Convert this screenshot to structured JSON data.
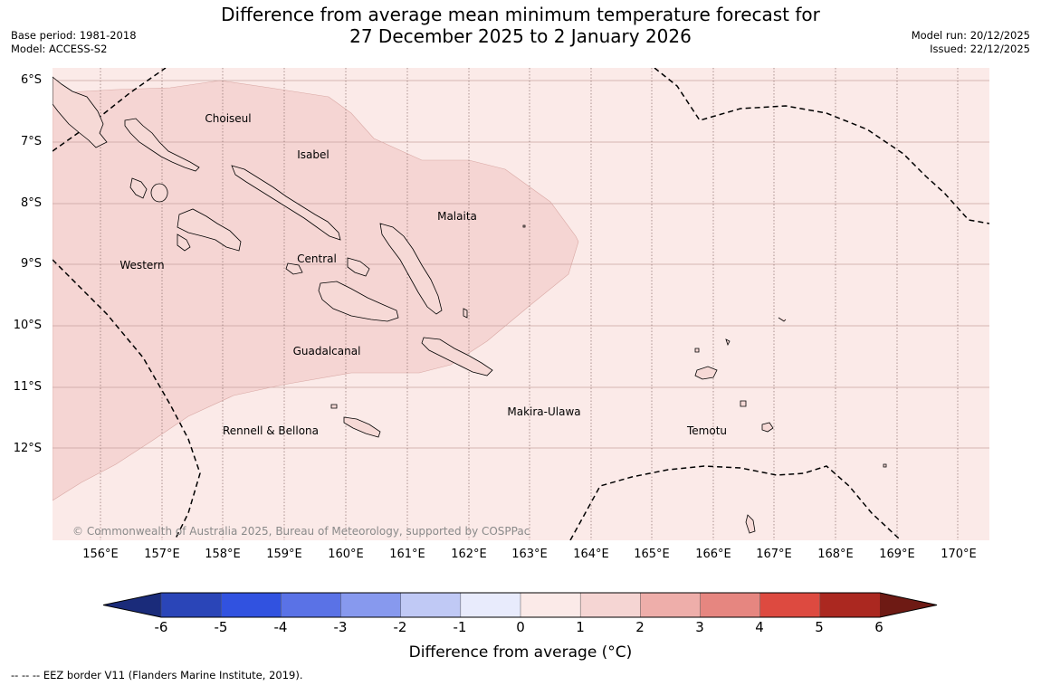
{
  "header": {
    "title_line1": "Difference from average mean minimum temperature forecast for",
    "title_line2": "27 December 2025 to 2 January 2026",
    "base_period": "Base period: 1981-2018",
    "model": "Model: ACCESS-S2",
    "model_run": "Model run: 20/12/2025",
    "issued": "Issued: 22/12/2025"
  },
  "map": {
    "latitude_labels": [
      "6°S",
      "7°S",
      "8°S",
      "9°S",
      "10°S",
      "11°S",
      "12°S"
    ],
    "longitude_labels": [
      "156°E",
      "157°E",
      "158°E",
      "159°E",
      "160°E",
      "161°E",
      "162°E",
      "163°E",
      "164°E",
      "165°E",
      "166°E",
      "167°E",
      "168°E",
      "169°E",
      "170°E"
    ],
    "regions": {
      "choiseul": "Choiseul",
      "isabel": "Isabel",
      "malaita": "Malaita",
      "western": "Western",
      "central": "Central",
      "guadalcanal": "Guadalcanal",
      "makira": "Makira-Ulawa",
      "rennell": "Rennell & Bellona",
      "temotu": "Temotu"
    },
    "copyright": "© Commonwealth of Australia 2025, Bureau of Meteorology, supported by COSPPac",
    "colors": {
      "anomaly_0_1": "#fbeae8",
      "anomaly_1_2": "#f5d5d3"
    }
  },
  "colorbar": {
    "ticks": [
      "-6",
      "-5",
      "-4",
      "-3",
      "-2",
      "-1",
      "0",
      "1",
      "2",
      "3",
      "4",
      "5",
      "6"
    ],
    "colors": [
      "#1a2b7a",
      "#2a45b8",
      "#3152e0",
      "#5a72e6",
      "#8799ee",
      "#c0c9f5",
      "#e8ebfc",
      "#fbeae8",
      "#f5d5d3",
      "#eeaeaa",
      "#e68680",
      "#dd4a40",
      "#ab2820",
      "#6e1a14"
    ],
    "label": "Difference from average (°C)"
  },
  "footnote": "--  --  -- EEZ border V11 (Flanders Marine Institute, 2019)."
}
